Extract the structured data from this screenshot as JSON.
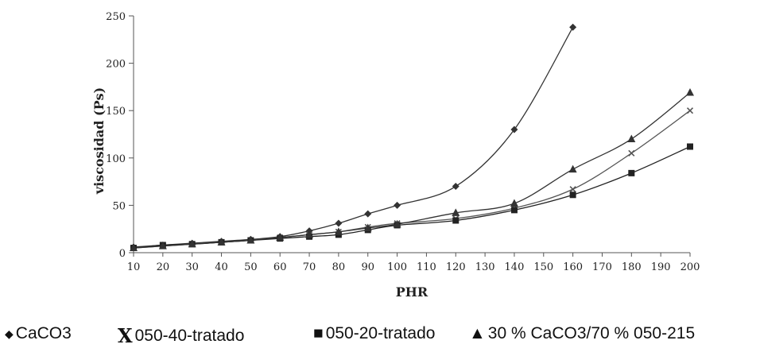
{
  "chart_data": {
    "type": "line",
    "xlabel": "PHR",
    "ylabel": "viscosidad (Ps)",
    "ylim": [
      0,
      250
    ],
    "yticks": [
      0,
      50,
      100,
      150,
      200,
      250
    ],
    "xticks": [
      10,
      20,
      30,
      40,
      50,
      60,
      70,
      80,
      90,
      100,
      110,
      120,
      130,
      140,
      150,
      160,
      170,
      180,
      190,
      200
    ],
    "grid": false,
    "legend_position": "bottom",
    "series": [
      {
        "name": "CaCO3",
        "marker": "diamond",
        "color": "#333333",
        "x": [
          10,
          20,
          30,
          40,
          50,
          60,
          70,
          80,
          90,
          100,
          120,
          140,
          160
        ],
        "values": [
          6,
          8,
          10,
          12,
          14,
          17,
          23,
          31,
          41,
          50,
          70,
          130,
          238
        ]
      },
      {
        "name": "050-40-tratado",
        "marker": "x",
        "color": "#555555",
        "x": [
          10,
          20,
          30,
          40,
          50,
          60,
          70,
          80,
          90,
          100,
          120,
          140,
          160,
          180,
          200
        ],
        "values": [
          5,
          7,
          9,
          11,
          13,
          16,
          19,
          22,
          27,
          31,
          36,
          47,
          67,
          105,
          150
        ]
      },
      {
        "name": "050-20-tratado",
        "marker": "square",
        "color": "#222222",
        "x": [
          10,
          20,
          30,
          40,
          50,
          60,
          70,
          80,
          90,
          100,
          120,
          140,
          160,
          180,
          200
        ],
        "values": [
          5,
          8,
          9,
          11,
          13,
          15,
          17,
          19,
          24,
          29,
          34,
          45,
          61,
          84,
          112
        ]
      },
      {
        "name": "30 % CaCO3/70 % 050-215",
        "marker": "triangle",
        "color": "#333333",
        "x": [
          10,
          20,
          30,
          40,
          50,
          60,
          70,
          80,
          90,
          100,
          120,
          140,
          160,
          180,
          200
        ],
        "values": [
          5,
          7,
          9,
          11,
          13,
          16,
          19,
          22,
          26,
          30,
          42,
          52,
          88,
          120,
          169
        ]
      }
    ]
  },
  "legend": {
    "items": [
      {
        "symbol": "◆",
        "label": "CaCO3"
      },
      {
        "symbol": "X",
        "label": "050-40-tratado"
      },
      {
        "symbol": "■",
        "label": "050-20-tratado"
      },
      {
        "symbol": "▲",
        "label": "30 % CaCO3/70 % 050-215"
      }
    ]
  }
}
